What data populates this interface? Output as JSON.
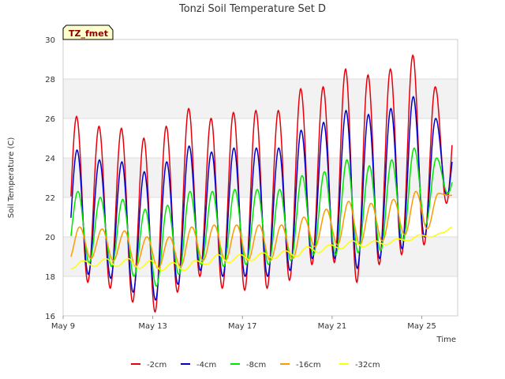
{
  "chart_data": {
    "type": "line",
    "title": "Tonzi Soil Temperature Set D",
    "xlabel": "Time",
    "ylabel": "Soil Temperature (C)",
    "badge": "TZ_fmet",
    "ylim": [
      16,
      30
    ],
    "xlim": [
      9,
      26.6
    ],
    "yticks": [
      16,
      18,
      20,
      22,
      24,
      26,
      28,
      30
    ],
    "xticks": [
      {
        "value": 9,
        "label": "May 9"
      },
      {
        "value": 13,
        "label": "May 13"
      },
      {
        "value": 17,
        "label": "May 17"
      },
      {
        "value": 21,
        "label": "May 21"
      },
      {
        "value": 25,
        "label": "May 25"
      }
    ],
    "legend_position": "bottom",
    "grid": true,
    "x_start": 9.35,
    "x_end": 26.35,
    "series": [
      {
        "name": "-2cm",
        "color": "#e8000b",
        "peaks": [
          26.1,
          25.6,
          25.5,
          25.0,
          25.6,
          26.5,
          26.0,
          26.3,
          26.4,
          26.4,
          27.5,
          27.6,
          28.5,
          28.2,
          28.5,
          29.2,
          27.6
        ],
        "troughs": [
          18.0,
          17.7,
          17.4,
          16.7,
          16.2,
          17.2,
          18.0,
          17.4,
          17.3,
          17.4,
          17.8,
          18.6,
          18.7,
          17.7,
          18.6,
          19.1,
          19.6,
          21.7
        ]
      },
      {
        "name": "-4cm",
        "color": "#0000cc",
        "peaks": [
          24.4,
          23.9,
          23.8,
          23.3,
          23.8,
          24.6,
          24.3,
          24.5,
          24.5,
          24.5,
          25.4,
          25.8,
          26.4,
          26.2,
          26.5,
          27.1,
          26.0
        ],
        "troughs": [
          18.3,
          18.1,
          17.9,
          17.2,
          16.8,
          17.6,
          18.3,
          18.0,
          18.0,
          18.0,
          18.3,
          18.9,
          18.9,
          18.4,
          18.9,
          19.4,
          20.0,
          22.1
        ]
      },
      {
        "name": "-8cm",
        "color": "#00e600",
        "peaks": [
          22.3,
          22.0,
          21.9,
          21.4,
          21.6,
          22.3,
          22.3,
          22.4,
          22.4,
          22.4,
          23.1,
          23.3,
          23.9,
          23.6,
          23.9,
          24.5,
          24.0
        ],
        "troughs": [
          19.0,
          18.7,
          18.5,
          18.0,
          17.5,
          18.1,
          18.6,
          18.5,
          18.6,
          18.6,
          18.8,
          19.1,
          19.1,
          19.2,
          19.3,
          19.8,
          20.6,
          22.2
        ]
      },
      {
        "name": "-16cm",
        "color": "#ff9900",
        "peaks": [
          20.5,
          20.4,
          20.3,
          20.0,
          20.0,
          20.5,
          20.6,
          20.6,
          20.6,
          20.6,
          21.0,
          21.4,
          21.8,
          21.7,
          21.9,
          22.3,
          22.2
        ],
        "troughs": [
          18.8,
          18.9,
          18.8,
          18.5,
          18.4,
          18.5,
          18.8,
          18.8,
          18.8,
          18.8,
          18.9,
          19.5,
          19.6,
          19.6,
          19.8,
          20.1,
          20.4,
          22.1
        ]
      },
      {
        "name": "-32cm",
        "color": "#ffff00",
        "peaks": [
          18.8,
          18.9,
          18.9,
          18.8,
          18.7,
          18.8,
          19.1,
          19.1,
          19.2,
          19.3,
          19.5,
          19.6,
          19.8,
          19.8,
          19.9,
          20.1,
          20.2
        ],
        "troughs": [
          18.4,
          18.5,
          18.5,
          18.4,
          18.3,
          18.3,
          18.6,
          18.7,
          18.8,
          18.9,
          19.0,
          19.2,
          19.4,
          19.5,
          19.6,
          19.8,
          20.0,
          20.5
        ]
      }
    ]
  }
}
